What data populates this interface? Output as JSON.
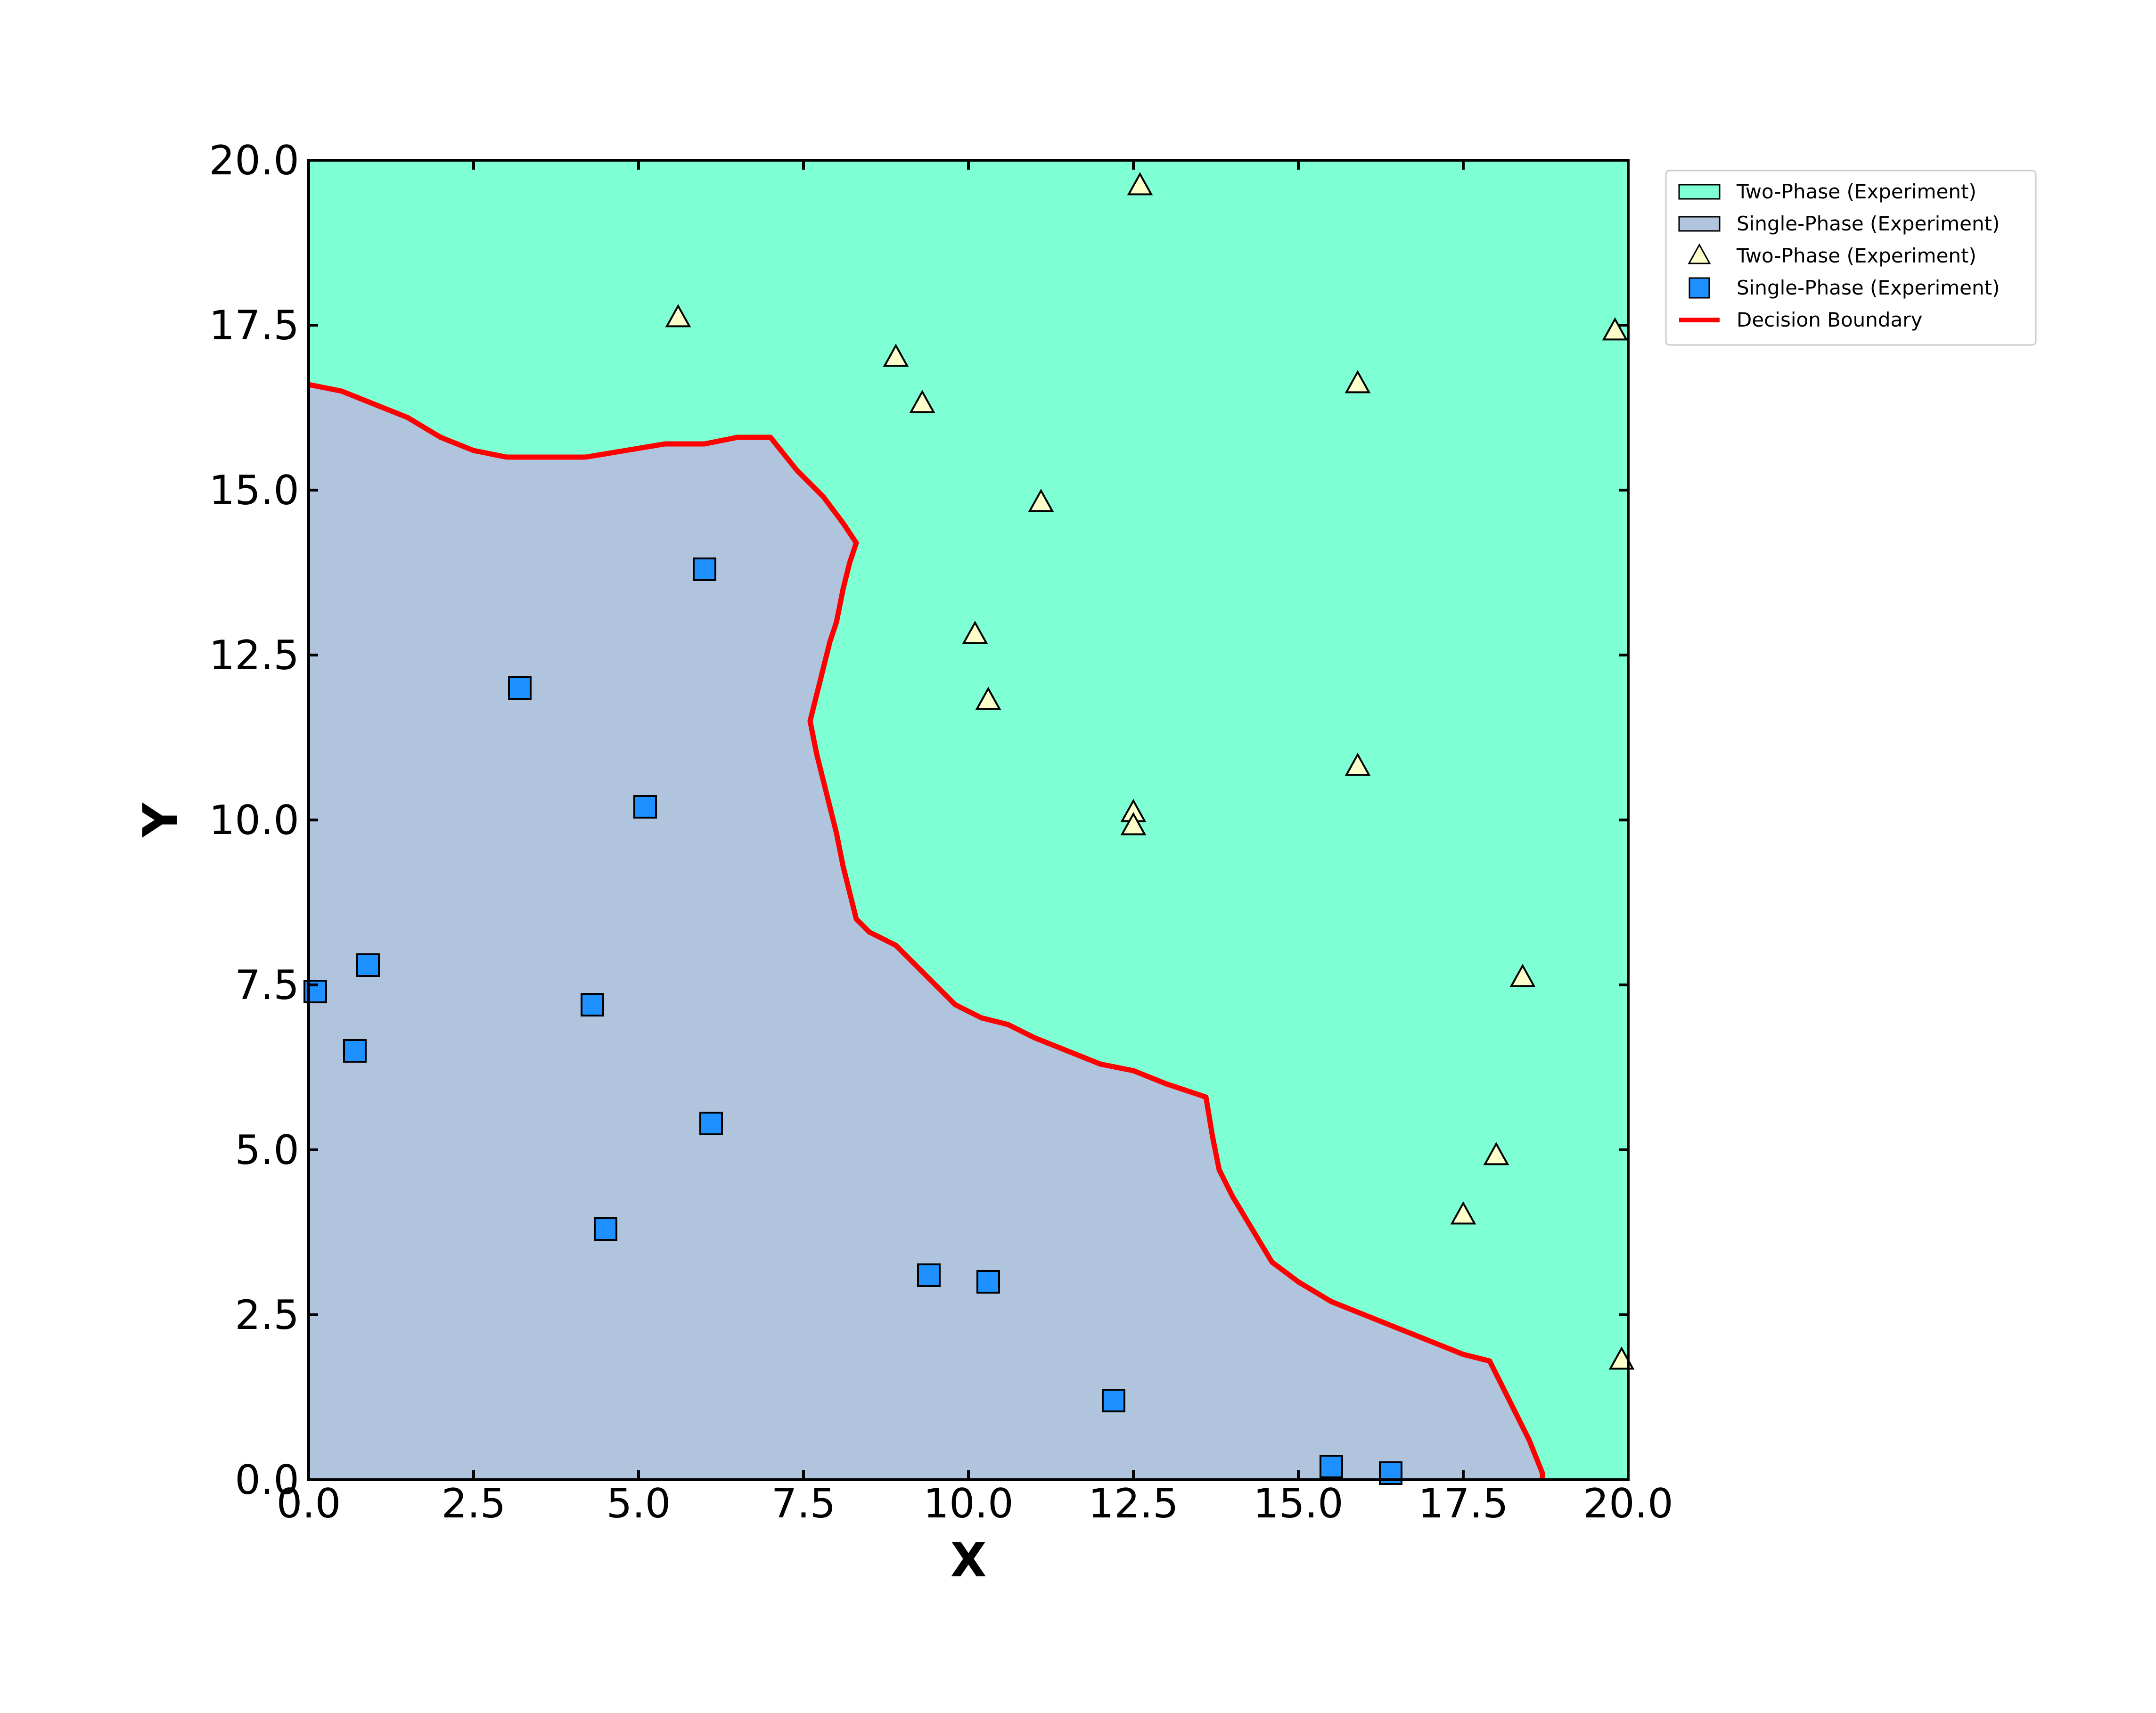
{
  "chart_data": {
    "type": "scatter",
    "title": "",
    "xlabel": "X",
    "ylabel": "Y",
    "xlim": [
      0,
      20
    ],
    "ylim": [
      0,
      20
    ],
    "xticks": [
      "0.0",
      "2.5",
      "5.0",
      "7.5",
      "10.0",
      "12.5",
      "15.0",
      "17.5",
      "20.0"
    ],
    "yticks": [
      "0.0",
      "2.5",
      "5.0",
      "7.5",
      "10.0",
      "12.5",
      "15.0",
      "17.5",
      "20.0"
    ],
    "grid": false,
    "legend_position": "outside top-right",
    "regions": [
      {
        "name": "Two-Phase (Experiment)",
        "color": "#7fffd4",
        "side": "above boundary"
      },
      {
        "name": "Single-Phase (Experiment)",
        "color": "#b0c4de",
        "side": "below boundary"
      }
    ],
    "series": [
      {
        "name": "Two-Phase (Experiment)",
        "marker": "triangle",
        "color": "#ffffcc",
        "points": [
          [
            5.6,
            17.6
          ],
          [
            8.9,
            17.0
          ],
          [
            9.3,
            16.3
          ],
          [
            12.6,
            19.6
          ],
          [
            11.1,
            14.8
          ],
          [
            15.9,
            16.6
          ],
          [
            19.8,
            17.4
          ],
          [
            10.1,
            12.8
          ],
          [
            10.3,
            11.8
          ],
          [
            15.9,
            10.8
          ],
          [
            12.5,
            10.1
          ],
          [
            12.5,
            9.9
          ],
          [
            18.4,
            7.6
          ],
          [
            18.0,
            4.9
          ],
          [
            17.5,
            4.0
          ],
          [
            19.9,
            1.8
          ]
        ]
      },
      {
        "name": "Single-Phase (Experiment)",
        "marker": "square",
        "color": "#1e90ff",
        "points": [
          [
            6.0,
            13.8
          ],
          [
            3.2,
            12.0
          ],
          [
            5.1,
            10.2
          ],
          [
            0.1,
            7.4
          ],
          [
            0.9,
            7.8
          ],
          [
            0.7,
            6.5
          ],
          [
            4.3,
            7.2
          ],
          [
            6.1,
            5.4
          ],
          [
            4.5,
            3.8
          ],
          [
            9.4,
            3.1
          ],
          [
            10.3,
            3.0
          ],
          [
            12.2,
            1.2
          ],
          [
            15.5,
            0.2
          ],
          [
            16.4,
            0.1
          ]
        ]
      }
    ],
    "boundary": {
      "name": "Decision Boundary",
      "color": "#ff0000",
      "points": [
        [
          0,
          16.6
        ],
        [
          0.5,
          16.5
        ],
        [
          1.0,
          16.3
        ],
        [
          1.5,
          16.1
        ],
        [
          2.0,
          15.8
        ],
        [
          2.5,
          15.6
        ],
        [
          3.0,
          15.5
        ],
        [
          3.6,
          15.5
        ],
        [
          4.2,
          15.5
        ],
        [
          4.8,
          15.6
        ],
        [
          5.4,
          15.7
        ],
        [
          6.0,
          15.7
        ],
        [
          6.5,
          15.8
        ],
        [
          7.0,
          15.8
        ],
        [
          7.4,
          15.3
        ],
        [
          7.8,
          14.9
        ],
        [
          8.1,
          14.5
        ],
        [
          8.3,
          14.2
        ],
        [
          8.2,
          13.9
        ],
        [
          8.1,
          13.5
        ],
        [
          8.0,
          13.0
        ],
        [
          7.9,
          12.7
        ],
        [
          7.8,
          12.3
        ],
        [
          7.7,
          11.9
        ],
        [
          7.6,
          11.5
        ],
        [
          7.7,
          11.0
        ],
        [
          7.8,
          10.6
        ],
        [
          7.9,
          10.2
        ],
        [
          8.0,
          9.8
        ],
        [
          8.1,
          9.3
        ],
        [
          8.2,
          8.9
        ],
        [
          8.3,
          8.5
        ],
        [
          8.5,
          8.3
        ],
        [
          8.9,
          8.1
        ],
        [
          9.2,
          7.8
        ],
        [
          9.5,
          7.5
        ],
        [
          9.8,
          7.2
        ],
        [
          10.2,
          7.0
        ],
        [
          10.6,
          6.9
        ],
        [
          11.0,
          6.7
        ],
        [
          11.5,
          6.5
        ],
        [
          12.0,
          6.3
        ],
        [
          12.5,
          6.2
        ],
        [
          13.0,
          6.0
        ],
        [
          13.3,
          5.9
        ],
        [
          13.6,
          5.8
        ],
        [
          13.7,
          5.2
        ],
        [
          13.8,
          4.7
        ],
        [
          14.0,
          4.3
        ],
        [
          14.3,
          3.8
        ],
        [
          14.6,
          3.3
        ],
        [
          15.0,
          3.0
        ],
        [
          15.5,
          2.7
        ],
        [
          16.0,
          2.5
        ],
        [
          16.5,
          2.3
        ],
        [
          17.0,
          2.1
        ],
        [
          17.5,
          1.9
        ],
        [
          17.9,
          1.8
        ],
        [
          18.1,
          1.4
        ],
        [
          18.3,
          1.0
        ],
        [
          18.5,
          0.6
        ],
        [
          18.7,
          0.1
        ],
        [
          18.7,
          0
        ]
      ]
    },
    "legend": [
      {
        "label": "Two-Phase (Experiment)",
        "kind": "patch",
        "color": "#7fffd4"
      },
      {
        "label": "Single-Phase (Experiment)",
        "kind": "patch",
        "color": "#b0c4de"
      },
      {
        "label": "Two-Phase (Experiment)",
        "kind": "triangle",
        "color": "#ffffcc"
      },
      {
        "label": "Single-Phase (Experiment)",
        "kind": "square",
        "color": "#1e90ff"
      },
      {
        "label": "Decision Boundary",
        "kind": "line",
        "color": "#ff0000"
      }
    ]
  }
}
